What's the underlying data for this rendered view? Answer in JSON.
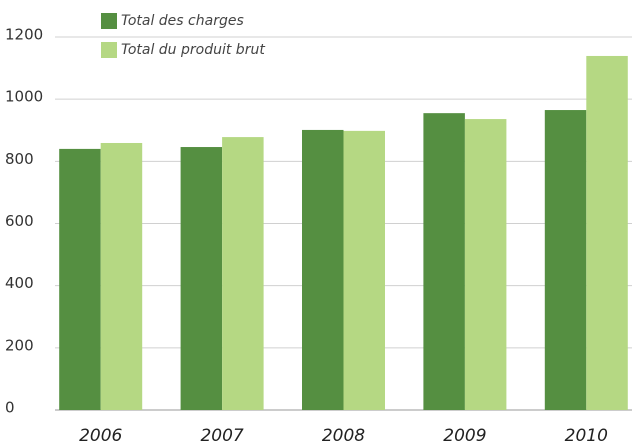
{
  "chart_data": {
    "type": "bar",
    "categories": [
      "2006",
      "2007",
      "2008",
      "2009",
      "2010"
    ],
    "series": [
      {
        "name": "Total des charges",
        "color": "#558f41",
        "values": [
          840,
          846,
          901,
          955,
          965
        ]
      },
      {
        "name": "Total du produit brut",
        "color": "#b5d883",
        "values": [
          859,
          878,
          898,
          936,
          1139
        ]
      }
    ],
    "ylim": [
      0,
      1200
    ],
    "yticks": [
      0,
      200,
      400,
      600,
      800,
      1000,
      1200
    ],
    "grid": true
  }
}
